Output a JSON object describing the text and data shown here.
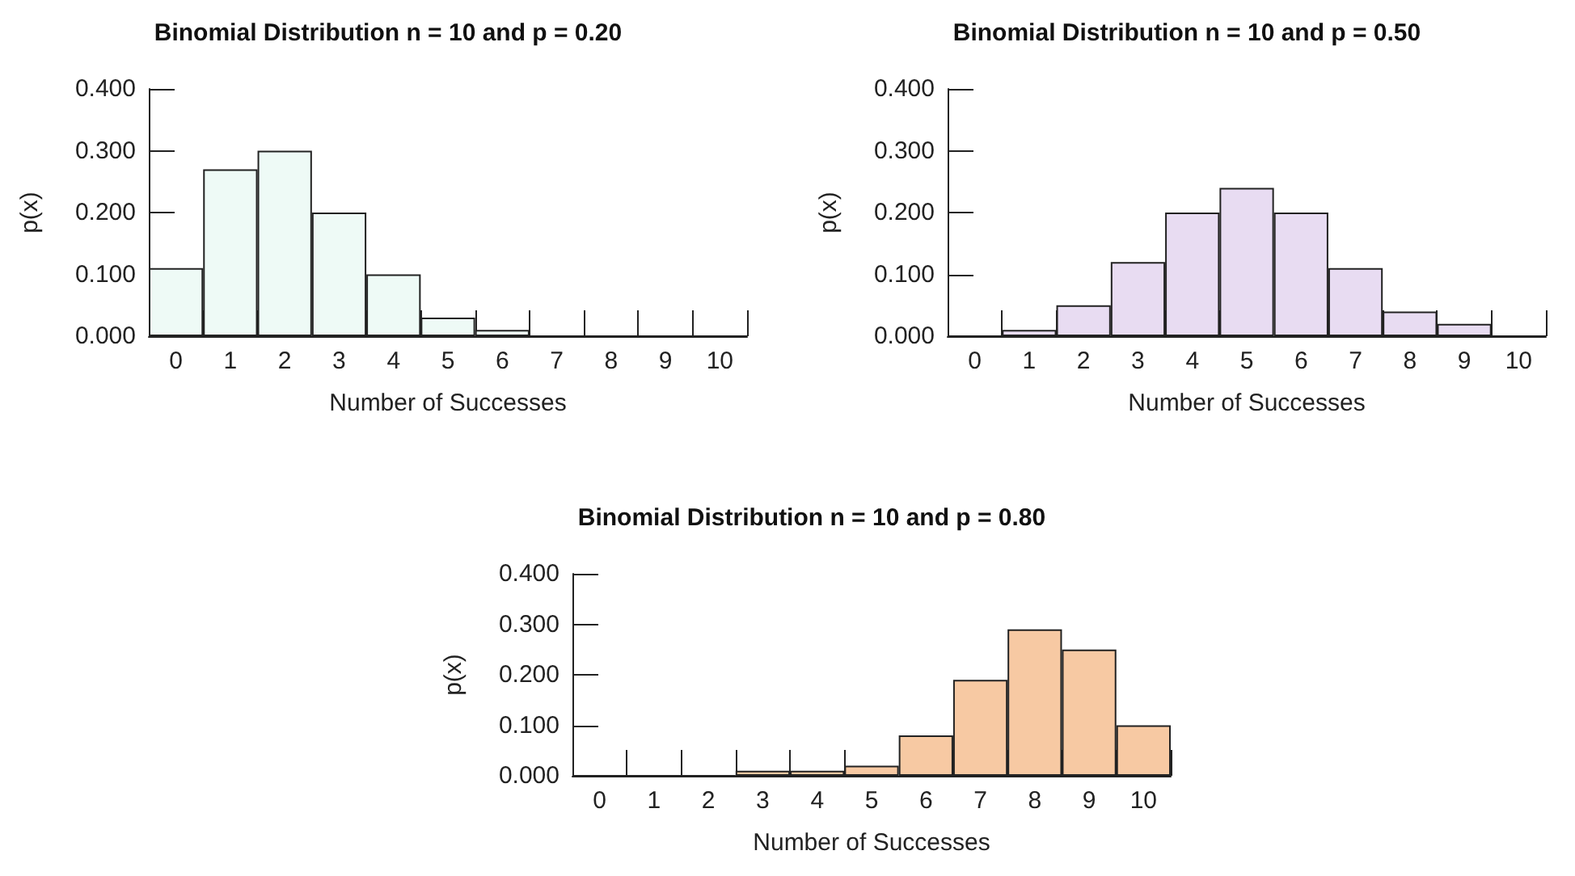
{
  "chart_data": [
    {
      "type": "bar",
      "title": "Binomial Distribution n = 10 and p = 0.20",
      "xlabel": "Number of Successes",
      "ylabel": "p(x)",
      "categories": [
        "0",
        "1",
        "2",
        "3",
        "4",
        "5",
        "6",
        "7",
        "8",
        "9",
        "10"
      ],
      "values": [
        0.11,
        0.27,
        0.3,
        0.2,
        0.1,
        0.03,
        0.01,
        0,
        0,
        0,
        0
      ],
      "color": "#eefaf6",
      "ylim": [
        0,
        0.4
      ],
      "yticks": [
        {
          "value": 0,
          "label": "0.000"
        },
        {
          "value": 0.1,
          "label": "0.100"
        },
        {
          "value": 0.2,
          "label": "0.200"
        },
        {
          "value": 0.3,
          "label": "0.300"
        },
        {
          "value": 0.4,
          "label": "0.400"
        }
      ],
      "grid": false
    },
    {
      "type": "bar",
      "title": "Binomial Distribution n = 10 and p = 0.50",
      "xlabel": "Number of Successes",
      "ylabel": "p(x)",
      "categories": [
        "0",
        "1",
        "2",
        "3",
        "4",
        "5",
        "6",
        "7",
        "8",
        "9",
        "10"
      ],
      "values": [
        0,
        0.01,
        0.05,
        0.12,
        0.2,
        0.24,
        0.2,
        0.11,
        0.04,
        0.02,
        0
      ],
      "color": "#e8dcf2",
      "ylim": [
        0,
        0.4
      ],
      "yticks": [
        {
          "value": 0,
          "label": "0.000"
        },
        {
          "value": 0.1,
          "label": "0.100"
        },
        {
          "value": 0.2,
          "label": "0.200"
        },
        {
          "value": 0.3,
          "label": "0.300"
        },
        {
          "value": 0.4,
          "label": "0.400"
        }
      ],
      "grid": false
    },
    {
      "type": "bar",
      "title": "Binomial Distribution n = 10 and p = 0.80",
      "xlabel": "Number of Successes",
      "ylabel": "p(x)",
      "categories": [
        "0",
        "1",
        "2",
        "3",
        "4",
        "5",
        "6",
        "7",
        "8",
        "9",
        "10"
      ],
      "values": [
        0,
        0,
        0,
        0.01,
        0.01,
        0.02,
        0.08,
        0.19,
        0.29,
        0.25,
        0.1
      ],
      "color": "#f7c9a3",
      "ylim": [
        0,
        0.4
      ],
      "yticks": [
        {
          "value": 0,
          "label": "0.000"
        },
        {
          "value": 0.1,
          "label": "0.100"
        },
        {
          "value": 0.2,
          "label": "0.200"
        },
        {
          "value": 0.3,
          "label": "0.300"
        },
        {
          "value": 0.4,
          "label": "0.400"
        }
      ],
      "grid": false
    }
  ]
}
